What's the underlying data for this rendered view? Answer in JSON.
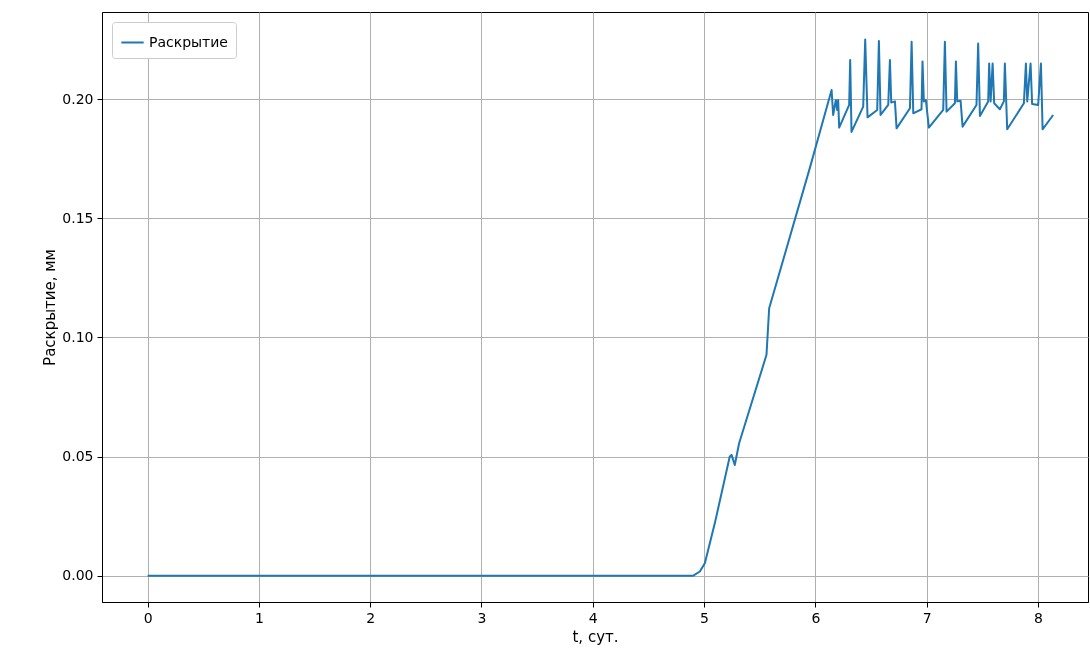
{
  "chart_data": {
    "type": "line",
    "xlabel": "t, сут.",
    "ylabel": "Раскрытие, мм",
    "x": [
      0,
      4.9,
      4.962,
      5.007,
      5.097,
      5.231,
      5.247,
      5.276,
      5.315,
      5.561,
      5.585,
      5.95,
      6.146,
      6.16,
      6.184,
      6.196,
      6.205,
      6.214,
      6.304,
      6.313,
      6.325,
      6.43,
      6.448,
      6.469,
      6.556,
      6.571,
      6.586,
      6.655,
      6.67,
      6.682,
      6.715,
      6.73,
      6.85,
      6.865,
      6.88,
      6.954,
      6.963,
      6.975,
      6.993,
      7.02,
      7.149,
      7.164,
      7.179,
      7.254,
      7.263,
      7.275,
      7.305,
      7.323,
      7.448,
      7.463,
      7.479,
      7.553,
      7.562,
      7.575,
      7.593,
      7.607,
      7.658,
      7.694,
      7.703,
      7.724,
      7.874,
      7.892,
      7.904,
      7.934,
      7.948,
      8.002,
      8.027,
      8.042,
      8.137
    ],
    "series": [
      {
        "name": "Раскрытие",
        "color": "#1f77b4",
        "values": [
          0,
          0,
          0.0018,
          0.0053,
          0.0221,
          0.05,
          0.0507,
          0.0465,
          0.0556,
          0.0927,
          0.1122,
          0.171,
          0.2038,
          0.1933,
          0.1996,
          0.1954,
          0.1996,
          0.188,
          0.1975,
          0.2164,
          0.1862,
          0.1968,
          0.225,
          0.1923,
          0.1954,
          0.2243,
          0.1933,
          0.1975,
          0.2164,
          0.1985,
          0.199,
          0.1877,
          0.1961,
          0.224,
          0.194,
          0.1957,
          0.2157,
          0.199,
          0.1996,
          0.188,
          0.1954,
          0.224,
          0.1947,
          0.1982,
          0.2157,
          0.199,
          0.1993,
          0.1884,
          0.1975,
          0.2233,
          0.1929,
          0.199,
          0.2149,
          0.199,
          0.2149,
          0.1982,
          0.1957,
          0.199,
          0.2149,
          0.1873,
          0.1982,
          0.2149,
          0.199,
          0.2149,
          0.1979,
          0.1975,
          0.2149,
          0.1873,
          0.1933
        ]
      }
    ],
    "xlim": [
      -0.41,
      8.45
    ],
    "ylim": [
      -0.011,
      0.2365
    ],
    "xticks": [
      0,
      1,
      2,
      3,
      4,
      5,
      6,
      7,
      8
    ],
    "yticks": [
      {
        "value": 0,
        "label": "0.00"
      },
      {
        "value": 0.05,
        "label": "0.05"
      },
      {
        "value": 0.1,
        "label": "0.10"
      },
      {
        "value": 0.15,
        "label": "0.15"
      },
      {
        "value": 0.2,
        "label": "0.20"
      }
    ],
    "grid": true,
    "legend": "top left",
    "line_style": "solid"
  }
}
